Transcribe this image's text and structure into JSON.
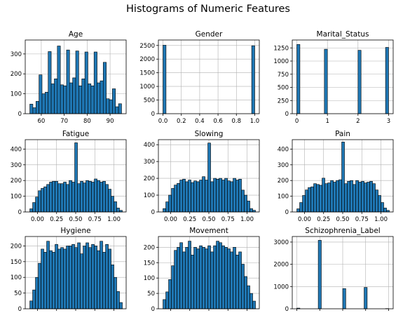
{
  "title": "Histograms of Numeric Features",
  "colors": {
    "bar": "#1f77b4",
    "edge": "#000000",
    "grid": "#b0b0b0"
  },
  "chart_data": [
    {
      "type": "bar",
      "title": "Age",
      "grid": true,
      "xlim": [
        53,
        97
      ],
      "ylim": [
        0,
        370
      ],
      "xticks": [
        60,
        70,
        80,
        90
      ],
      "yticks": [
        0,
        100,
        200,
        300
      ],
      "bins": [
        [
          55,
          56.33
        ],
        [
          56.33,
          57.67
        ],
        [
          57.67,
          59
        ],
        [
          59,
          60.33
        ],
        [
          60.33,
          61.67
        ],
        [
          61.67,
          63
        ],
        [
          63,
          64.33
        ],
        [
          64.33,
          65.67
        ],
        [
          65.67,
          67
        ],
        [
          67,
          68.33
        ],
        [
          68.33,
          69.67
        ],
        [
          69.67,
          71
        ],
        [
          71,
          72.33
        ],
        [
          72.33,
          73.67
        ],
        [
          73.67,
          75
        ],
        [
          75,
          76.33
        ],
        [
          76.33,
          77.67
        ],
        [
          77.67,
          79
        ],
        [
          79,
          80.33
        ],
        [
          80.33,
          81.67
        ],
        [
          81.67,
          83
        ],
        [
          83,
          84.33
        ],
        [
          84.33,
          85.67
        ],
        [
          85.67,
          87
        ],
        [
          87,
          88.33
        ],
        [
          88.33,
          89.67
        ],
        [
          89.67,
          91
        ],
        [
          91,
          92.33
        ],
        [
          92.33,
          93.67
        ],
        [
          93.67,
          95
        ]
      ],
      "values": [
        48,
        30,
        62,
        195,
        100,
        108,
        312,
        150,
        175,
        340,
        145,
        140,
        320,
        155,
        180,
        315,
        140,
        175,
        310,
        150,
        140,
        310,
        155,
        165,
        258,
        75,
        70,
        125,
        35,
        50
      ]
    },
    {
      "type": "bar",
      "title": "Gender",
      "grid": true,
      "xlim": [
        -0.05,
        1.05
      ],
      "ylim": [
        0,
        2700
      ],
      "xticks": [
        0.0,
        0.2,
        0.4,
        0.6,
        0.8,
        1.0
      ],
      "yticks": [
        0,
        500,
        1000,
        1500,
        2000,
        2500
      ],
      "bins": [
        [
          0,
          0.0333
        ],
        [
          0.9667,
          1.0
        ]
      ],
      "values": [
        2510,
        2490
      ]
    },
    {
      "type": "bar",
      "title": "Marital_Status",
      "grid": true,
      "xlim": [
        -0.15,
        3.15
      ],
      "ylim": [
        0,
        1400
      ],
      "xticks": [
        0,
        1,
        2,
        3
      ],
      "yticks": [
        0,
        250,
        500,
        750,
        1000,
        1250
      ],
      "bins": [
        [
          0,
          0.1
        ],
        [
          0.9,
          1.0
        ],
        [
          2.0,
          2.1
        ],
        [
          2.9,
          3.0
        ]
      ],
      "values": [
        1315,
        1225,
        1205,
        1260
      ]
    },
    {
      "type": "bar",
      "title": "Fatigue",
      "grid": true,
      "xlim": [
        -0.16,
        1.16
      ],
      "ylim": [
        0,
        460
      ],
      "xticks": [
        0.0,
        0.25,
        0.5,
        0.75,
        1.0
      ],
      "yticks": [
        0,
        100,
        200,
        300,
        400
      ],
      "bins": [
        [
          -0.1,
          -0.0633
        ],
        [
          -0.0633,
          -0.0267
        ],
        [
          -0.0267,
          0.01
        ],
        [
          0.01,
          0.0467
        ],
        [
          0.0467,
          0.0833
        ],
        [
          0.0833,
          0.12
        ],
        [
          0.12,
          0.1567
        ],
        [
          0.1567,
          0.1933
        ],
        [
          0.1933,
          0.23
        ],
        [
          0.23,
          0.2667
        ],
        [
          0.2667,
          0.3033
        ],
        [
          0.3033,
          0.34
        ],
        [
          0.34,
          0.3767
        ],
        [
          0.3767,
          0.4133
        ],
        [
          0.4133,
          0.45
        ],
        [
          0.45,
          0.4867
        ],
        [
          0.4867,
          0.5233
        ],
        [
          0.5233,
          0.56
        ],
        [
          0.56,
          0.5967
        ],
        [
          0.5967,
          0.6333
        ],
        [
          0.6333,
          0.67
        ],
        [
          0.67,
          0.7067
        ],
        [
          0.7067,
          0.7433
        ],
        [
          0.7433,
          0.78
        ],
        [
          0.78,
          0.8167
        ],
        [
          0.8167,
          0.8533
        ],
        [
          0.8533,
          0.89
        ],
        [
          0.89,
          0.9267
        ],
        [
          0.9267,
          0.9633
        ],
        [
          0.9633,
          1.0
        ],
        [
          1.0,
          1.0367
        ],
        [
          1.0367,
          1.0733
        ],
        [
          1.0733,
          1.11
        ]
      ],
      "values": [
        20,
        60,
        95,
        135,
        150,
        160,
        175,
        190,
        195,
        195,
        180,
        180,
        190,
        175,
        200,
        190,
        440,
        180,
        195,
        185,
        200,
        195,
        190,
        210,
        200,
        190,
        195,
        175,
        145,
        100,
        65,
        25,
        10
      ]
    },
    {
      "type": "bar",
      "title": "Slowing",
      "grid": true,
      "xlim": [
        -0.16,
        1.16
      ],
      "ylim": [
        0,
        430
      ],
      "xticks": [
        0.0,
        0.25,
        0.5,
        0.75,
        1.0
      ],
      "yticks": [
        0,
        100,
        200,
        300,
        400
      ],
      "bins": [
        [
          -0.1,
          -0.0633
        ],
        [
          -0.0633,
          -0.0267
        ],
        [
          -0.0267,
          0.01
        ],
        [
          0.01,
          0.0467
        ],
        [
          0.0467,
          0.0833
        ],
        [
          0.0833,
          0.12
        ],
        [
          0.12,
          0.1567
        ],
        [
          0.1567,
          0.1933
        ],
        [
          0.1933,
          0.23
        ],
        [
          0.23,
          0.2667
        ],
        [
          0.2667,
          0.3033
        ],
        [
          0.3033,
          0.34
        ],
        [
          0.34,
          0.3767
        ],
        [
          0.3767,
          0.4133
        ],
        [
          0.4133,
          0.45
        ],
        [
          0.45,
          0.4867
        ],
        [
          0.4867,
          0.5233
        ],
        [
          0.5233,
          0.56
        ],
        [
          0.56,
          0.5967
        ],
        [
          0.5967,
          0.6333
        ],
        [
          0.6333,
          0.67
        ],
        [
          0.67,
          0.7067
        ],
        [
          0.7067,
          0.7433
        ],
        [
          0.7433,
          0.78
        ],
        [
          0.78,
          0.8167
        ],
        [
          0.8167,
          0.8533
        ],
        [
          0.8533,
          0.89
        ],
        [
          0.89,
          0.9267
        ],
        [
          0.9267,
          0.9633
        ],
        [
          0.9633,
          1.0
        ],
        [
          1.0,
          1.0367
        ],
        [
          1.0367,
          1.0733
        ],
        [
          1.0733,
          1.11
        ]
      ],
      "values": [
        20,
        60,
        100,
        140,
        160,
        170,
        190,
        195,
        180,
        190,
        175,
        185,
        180,
        190,
        210,
        190,
        410,
        180,
        200,
        195,
        200,
        190,
        200,
        185,
        180,
        200,
        190,
        195,
        130,
        100,
        65,
        20,
        10
      ]
    },
    {
      "type": "bar",
      "title": "Pain",
      "grid": true,
      "xlim": [
        -0.16,
        1.16
      ],
      "ylim": [
        0,
        460
      ],
      "xticks": [
        0.0,
        0.25,
        0.5,
        0.75,
        1.0
      ],
      "yticks": [
        0,
        100,
        200,
        300,
        400
      ],
      "bins": [
        [
          -0.1,
          -0.0633
        ],
        [
          -0.0633,
          -0.0267
        ],
        [
          -0.0267,
          0.01
        ],
        [
          0.01,
          0.0467
        ],
        [
          0.0467,
          0.0833
        ],
        [
          0.0833,
          0.12
        ],
        [
          0.12,
          0.1567
        ],
        [
          0.1567,
          0.1933
        ],
        [
          0.1933,
          0.23
        ],
        [
          0.23,
          0.2667
        ],
        [
          0.2667,
          0.3033
        ],
        [
          0.3033,
          0.34
        ],
        [
          0.34,
          0.3767
        ],
        [
          0.3767,
          0.4133
        ],
        [
          0.4133,
          0.45
        ],
        [
          0.45,
          0.4867
        ],
        [
          0.4867,
          0.5233
        ],
        [
          0.5233,
          0.56
        ],
        [
          0.56,
          0.5967
        ],
        [
          0.5967,
          0.6333
        ],
        [
          0.6333,
          0.67
        ],
        [
          0.67,
          0.7067
        ],
        [
          0.7067,
          0.7433
        ],
        [
          0.7433,
          0.78
        ],
        [
          0.78,
          0.8167
        ],
        [
          0.8167,
          0.8533
        ],
        [
          0.8533,
          0.89
        ],
        [
          0.89,
          0.9267
        ],
        [
          0.9267,
          0.9633
        ],
        [
          0.9633,
          1.0
        ],
        [
          1.0,
          1.0367
        ],
        [
          1.0367,
          1.0733
        ],
        [
          1.0733,
          1.11
        ]
      ],
      "values": [
        20,
        60,
        105,
        140,
        155,
        160,
        180,
        175,
        170,
        215,
        180,
        185,
        200,
        190,
        200,
        205,
        445,
        180,
        195,
        200,
        175,
        200,
        190,
        195,
        185,
        190,
        195,
        180,
        140,
        105,
        60,
        25,
        10
      ]
    },
    {
      "type": "bar",
      "title": "Hygiene",
      "grid": true,
      "xlim": [
        -0.16,
        1.16
      ],
      "ylim": [
        0,
        230
      ],
      "xticks": [
        0.0,
        0.25,
        0.5,
        0.75,
        1.0
      ],
      "yticks": [
        0,
        50,
        100,
        150,
        200
      ],
      "bins": [
        [
          -0.1,
          -0.0633
        ],
        [
          -0.0633,
          -0.0267
        ],
        [
          -0.0267,
          0.01
        ],
        [
          0.01,
          0.0467
        ],
        [
          0.0467,
          0.0833
        ],
        [
          0.0833,
          0.12
        ],
        [
          0.12,
          0.1567
        ],
        [
          0.1567,
          0.1933
        ],
        [
          0.1933,
          0.23
        ],
        [
          0.23,
          0.2667
        ],
        [
          0.2667,
          0.3033
        ],
        [
          0.3033,
          0.34
        ],
        [
          0.34,
          0.3767
        ],
        [
          0.3767,
          0.4133
        ],
        [
          0.4133,
          0.45
        ],
        [
          0.45,
          0.4867
        ],
        [
          0.4867,
          0.5233
        ],
        [
          0.5233,
          0.56
        ],
        [
          0.56,
          0.5967
        ],
        [
          0.5967,
          0.6333
        ],
        [
          0.6333,
          0.67
        ],
        [
          0.67,
          0.7067
        ],
        [
          0.7067,
          0.7433
        ],
        [
          0.7433,
          0.78
        ],
        [
          0.78,
          0.8167
        ],
        [
          0.8167,
          0.8533
        ],
        [
          0.8533,
          0.89
        ],
        [
          0.89,
          0.9267
        ],
        [
          0.9267,
          0.9633
        ],
        [
          0.9633,
          1.0
        ],
        [
          1.0,
          1.0367
        ],
        [
          1.0367,
          1.0733
        ],
        [
          1.0733,
          1.11
        ]
      ],
      "values": [
        25,
        60,
        100,
        145,
        190,
        180,
        215,
        185,
        180,
        205,
        190,
        195,
        190,
        200,
        200,
        205,
        195,
        210,
        175,
        200,
        210,
        195,
        205,
        200,
        185,
        215,
        180,
        205,
        190,
        140,
        100,
        55,
        20
      ]
    },
    {
      "type": "bar",
      "title": "Movement",
      "grid": true,
      "xlim": [
        -0.16,
        1.16
      ],
      "ylim": [
        0,
        235
      ],
      "xticks": [
        0.0,
        0.25,
        0.5,
        0.75,
        1.0
      ],
      "yticks": [
        0,
        50,
        100,
        150,
        200
      ],
      "bins": [
        [
          -0.1,
          -0.0633
        ],
        [
          -0.0633,
          -0.0267
        ],
        [
          -0.0267,
          0.01
        ],
        [
          0.01,
          0.0467
        ],
        [
          0.0467,
          0.0833
        ],
        [
          0.0833,
          0.12
        ],
        [
          0.12,
          0.1567
        ],
        [
          0.1567,
          0.1933
        ],
        [
          0.1933,
          0.23
        ],
        [
          0.23,
          0.2667
        ],
        [
          0.2667,
          0.3033
        ],
        [
          0.3033,
          0.34
        ],
        [
          0.34,
          0.3767
        ],
        [
          0.3767,
          0.4133
        ],
        [
          0.4133,
          0.45
        ],
        [
          0.45,
          0.4867
        ],
        [
          0.4867,
          0.5233
        ],
        [
          0.5233,
          0.56
        ],
        [
          0.56,
          0.5967
        ],
        [
          0.5967,
          0.6333
        ],
        [
          0.6333,
          0.67
        ],
        [
          0.67,
          0.7067
        ],
        [
          0.7067,
          0.7433
        ],
        [
          0.7433,
          0.78
        ],
        [
          0.78,
          0.8167
        ],
        [
          0.8167,
          0.8533
        ],
        [
          0.8533,
          0.89
        ],
        [
          0.89,
          0.9267
        ],
        [
          0.9267,
          0.9633
        ],
        [
          0.9633,
          1.0
        ],
        [
          1.0,
          1.0367
        ],
        [
          1.0367,
          1.0733
        ],
        [
          1.0733,
          1.11
        ]
      ],
      "values": [
        30,
        55,
        95,
        140,
        190,
        200,
        215,
        185,
        200,
        220,
        175,
        200,
        195,
        205,
        200,
        195,
        205,
        185,
        205,
        220,
        215,
        205,
        200,
        195,
        185,
        200,
        175,
        185,
        145,
        105,
        75,
        50,
        25
      ]
    },
    {
      "type": "bar",
      "title": "Schizophrenia_Label",
      "grid": true,
      "xlim": [
        -0.2,
        4.2
      ],
      "ylim": [
        0,
        3250
      ],
      "xticks": [
        0,
        1,
        2,
        3,
        4
      ],
      "yticks": [
        0,
        1000,
        2000,
        3000
      ],
      "bins": [
        [
          0,
          0.1333
        ],
        [
          0.9333,
          1.0667
        ],
        [
          2.0,
          2.1333
        ],
        [
          2.9333,
          3.0667
        ],
        [
          3.8667,
          4.0
        ]
      ],
      "values": [
        30,
        3080,
        910,
        960,
        10
      ]
    }
  ]
}
